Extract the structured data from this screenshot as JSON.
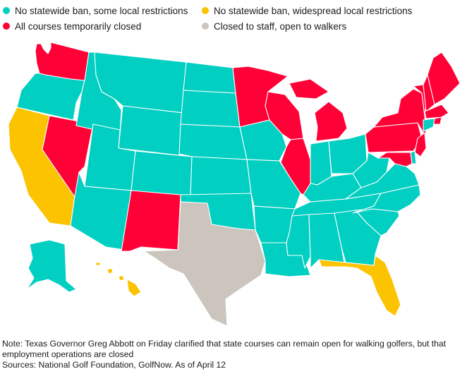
{
  "legend": {
    "items": [
      {
        "key": "some_local",
        "label": "No statewide ban, some local restrictions",
        "color": "#00cfc1"
      },
      {
        "key": "widespread_local",
        "label": "No statewide ban, widespread local restrictions",
        "color": "#fbc300"
      },
      {
        "key": "closed",
        "label": "All courses temporarily closed",
        "color": "#ff0037"
      },
      {
        "key": "walkers",
        "label": "Closed to staff, open to walkers",
        "color": "#cbc5bd"
      }
    ]
  },
  "map": {
    "state_status": {
      "WA": "closed",
      "OR": "some_local",
      "CA": "widespread_local",
      "NV": "closed",
      "ID": "some_local",
      "MT": "some_local",
      "WY": "some_local",
      "UT": "some_local",
      "AZ": "some_local",
      "CO": "some_local",
      "NM": "closed",
      "ND": "some_local",
      "SD": "some_local",
      "NE": "some_local",
      "KS": "some_local",
      "OK": "some_local",
      "TX": "walkers",
      "MN": "closed",
      "IA": "some_local",
      "MO": "some_local",
      "AR": "some_local",
      "LA": "some_local",
      "WI": "closed",
      "IL": "closed",
      "MI": "closed",
      "IN": "some_local",
      "OH": "some_local",
      "KY": "some_local",
      "TN": "some_local",
      "MS": "some_local",
      "AL": "some_local",
      "GA": "some_local",
      "FL": "widespread_local",
      "SC": "some_local",
      "NC": "some_local",
      "VA": "some_local",
      "WV": "some_local",
      "PA": "closed",
      "NY": "closed",
      "VT": "closed",
      "NH": "closed",
      "ME": "closed",
      "MA": "closed",
      "RI": "closed",
      "CT": "some_local",
      "NJ": "closed",
      "DE": "some_local",
      "MD": "closed",
      "AK": "some_local",
      "HI": "widespread_local"
    }
  },
  "notes": {
    "note": "Note: Texas Governor Greg Abbott on Friday clarified that state courses can remain open for walking golfers, but that employment operations are closed",
    "sources": "Sources: National Golf Foundation, GolfNow. As of April 12"
  }
}
